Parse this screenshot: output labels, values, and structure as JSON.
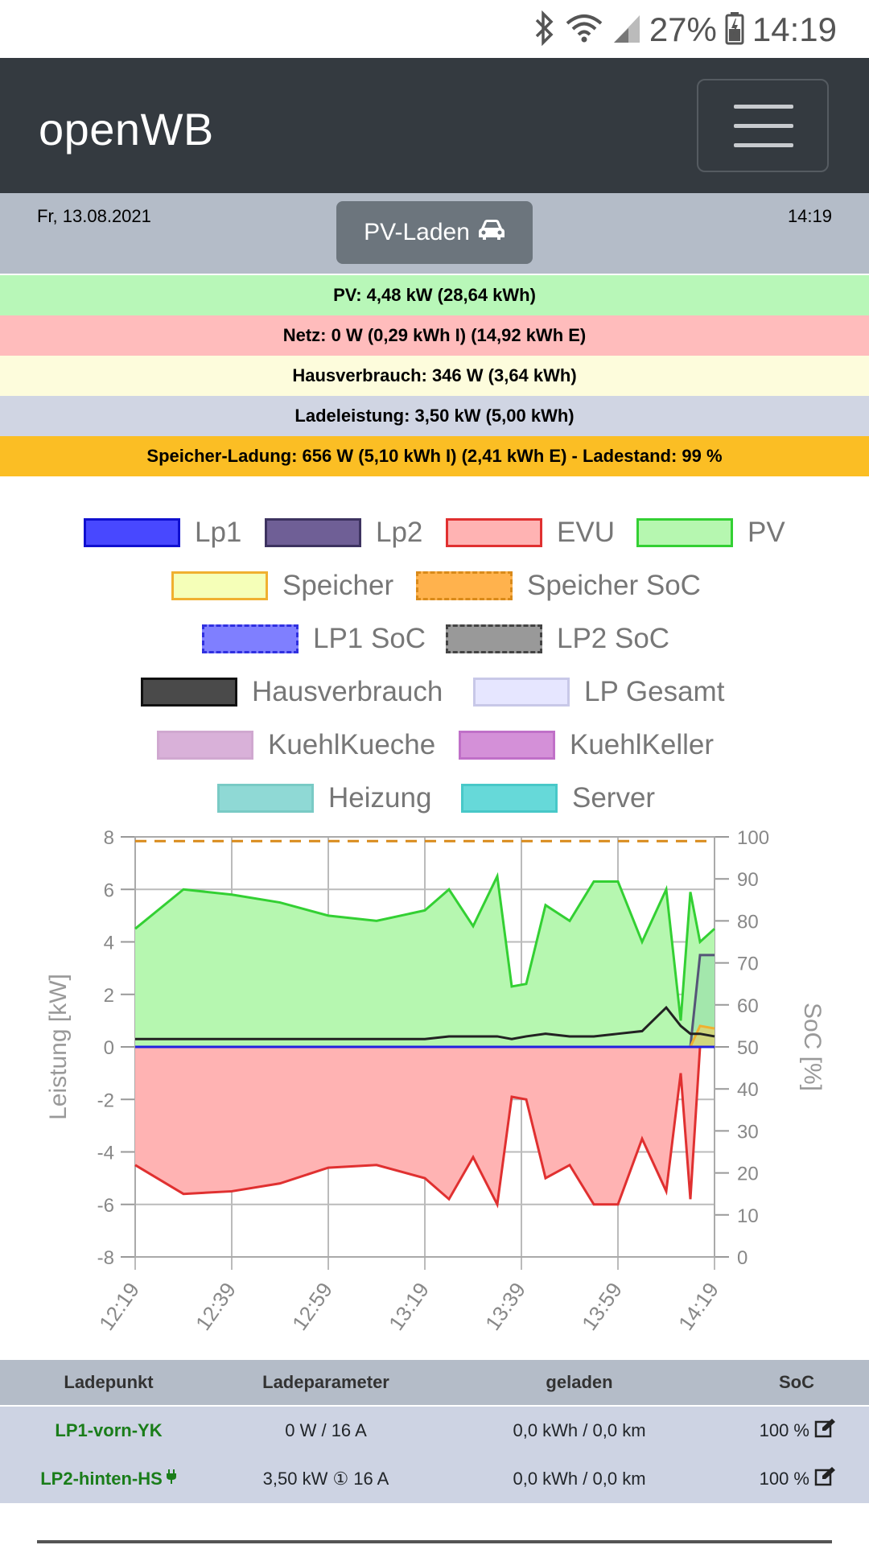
{
  "status_bar": {
    "battery": "27%",
    "time": "14:19"
  },
  "navbar": {
    "brand": "openWB"
  },
  "topinfo": {
    "date": "Fr, 13.08.2021",
    "time": "14:19",
    "mode_button": "PV-Laden"
  },
  "info_bars": [
    {
      "text": "PV: 4,48 kW (28,64 kWh)",
      "color": "#b8f7b8"
    },
    {
      "text": "Netz: 0 W (0,29 kWh I) (14,92 kWh E)",
      "color": "#ffbcbc"
    },
    {
      "text": "Hausverbrauch: 346 W (3,64 kWh)",
      "color": "#fdfcdc"
    },
    {
      "text": "Ladeleistung: 3,50 kW (5,00 kWh)",
      "color": "#d0d5e3"
    },
    {
      "text": "Speicher-Ladung: 656 W (5,10 kWh I) (2,41 kWh E) - Ladestand: 99 %",
      "color": "#fbbe24"
    }
  ],
  "legend": [
    {
      "label": "Lp1",
      "fill": "#4848ff",
      "border": "#1010d0",
      "dashed": false
    },
    {
      "label": "Lp2",
      "fill": "#6f5f96",
      "border": "#3d3360",
      "dashed": false
    },
    {
      "label": "EVU",
      "fill": "#ffb3b3",
      "border": "#e03030",
      "dashed": false
    },
    {
      "label": "PV",
      "fill": "#b6f7b0",
      "border": "#33d033",
      "dashed": false
    },
    {
      "label": "Speicher",
      "fill": "#f5ffb8",
      "border": "#f0b030",
      "dashed": false
    },
    {
      "label": "Speicher SoC",
      "fill": "#ffb24d",
      "border": "#d98a1a",
      "dashed": true
    },
    {
      "label": "LP1 SoC",
      "fill": "#7f7fff",
      "border": "#3030e0",
      "dashed": true
    },
    {
      "label": "LP2 SoC",
      "fill": "#999999",
      "border": "#444444",
      "dashed": true
    },
    {
      "label": "Hausverbrauch",
      "fill": "#4a4a4a",
      "border": "#111111",
      "dashed": false
    },
    {
      "label": "LP Gesamt",
      "fill": "#e6e6ff",
      "border": "#c8c8e8",
      "dashed": false
    },
    {
      "label": "KuehlKueche",
      "fill": "#d9b1d9",
      "border": "#d0a8d0",
      "dashed": false
    },
    {
      "label": "KuehlKeller",
      "fill": "#d490d8",
      "border": "#c070c8",
      "dashed": false
    },
    {
      "label": "Heizung",
      "fill": "#8fd9d5",
      "border": "#79cac5",
      "dashed": false
    },
    {
      "label": "Server",
      "fill": "#66d9d9",
      "border": "#48c8c8",
      "dashed": false
    }
  ],
  "chart_data": {
    "type": "area",
    "x": [
      "12:19",
      "12:29",
      "12:39",
      "12:49",
      "12:59",
      "13:09",
      "13:19",
      "13:24",
      "13:29",
      "13:34",
      "13:37",
      "13:40",
      "13:44",
      "13:49",
      "13:54",
      "13:59",
      "14:04",
      "14:09",
      "14:12",
      "14:14",
      "14:16",
      "14:19"
    ],
    "xticks": [
      "12:19",
      "12:39",
      "12:59",
      "13:19",
      "13:39",
      "13:59",
      "14:19"
    ],
    "ylabel": "Leistung [kW]",
    "y2label": "SoC [%]",
    "ylim": [
      -8,
      8
    ],
    "y2lim": [
      0,
      100
    ],
    "yticks": [
      "8",
      "6",
      "4",
      "2",
      "0",
      "-2",
      "-4",
      "-6",
      "-8"
    ],
    "y2ticks": [
      "100",
      "90",
      "80",
      "70",
      "60",
      "50",
      "40",
      "30",
      "20",
      "10",
      "0"
    ],
    "grid": true,
    "series": [
      {
        "name": "PV",
        "values": [
          4.5,
          6.0,
          5.8,
          5.5,
          5.0,
          4.8,
          5.2,
          6.0,
          4.6,
          6.5,
          2.3,
          2.4,
          5.4,
          4.8,
          6.3,
          6.3,
          4.0,
          6.0,
          1.0,
          5.9,
          4.0,
          4.5
        ]
      },
      {
        "name": "EVU",
        "values": [
          -4.5,
          -5.6,
          -5.5,
          -5.2,
          -4.6,
          -4.5,
          -5.0,
          -5.8,
          -4.2,
          -6.0,
          -1.9,
          -2.0,
          -5.0,
          -4.5,
          -6.0,
          -6.0,
          -3.5,
          -5.5,
          -1.0,
          -5.8,
          0,
          0
        ]
      },
      {
        "name": "Hausverbrauch",
        "values": [
          0.3,
          0.3,
          0.3,
          0.3,
          0.3,
          0.3,
          0.3,
          0.4,
          0.4,
          0.4,
          0.3,
          0.4,
          0.5,
          0.4,
          0.4,
          0.5,
          0.6,
          1.5,
          0.8,
          0.5,
          0.5,
          0.4
        ]
      },
      {
        "name": "LP Gesamt",
        "values": [
          0,
          0,
          0,
          0,
          0,
          0,
          0,
          0,
          0,
          0,
          0,
          0,
          0,
          0,
          0,
          0,
          0,
          0,
          0,
          0,
          3.5,
          3.5
        ]
      },
      {
        "name": "Speicher",
        "values": [
          0,
          0,
          0,
          0,
          0,
          0,
          0,
          0,
          0,
          0,
          0,
          0,
          0,
          0,
          0,
          0,
          0,
          0,
          0,
          0,
          0.8,
          0.7
        ]
      },
      {
        "name": "Speicher SoC",
        "values": [
          99,
          99,
          99,
          99,
          99,
          99,
          99,
          99,
          99,
          99,
          99,
          99,
          99,
          99,
          99,
          99,
          99,
          99,
          99,
          99,
          99,
          99
        ]
      }
    ]
  },
  "table": {
    "headers": [
      "Ladepunkt",
      "Ladeparameter",
      "geladen",
      "SoC"
    ],
    "rows": [
      {
        "name": "LP1-vorn-YK",
        "param": "0 W / 16 A",
        "charged": "0,0 kWh / 0,0 km",
        "soc": "100 %"
      },
      {
        "name": "LP2-hinten-HS",
        "param": "3,50 kW ① 16 A",
        "charged": "0,0 kWh / 0,0 km",
        "soc": "100 %"
      }
    ]
  }
}
